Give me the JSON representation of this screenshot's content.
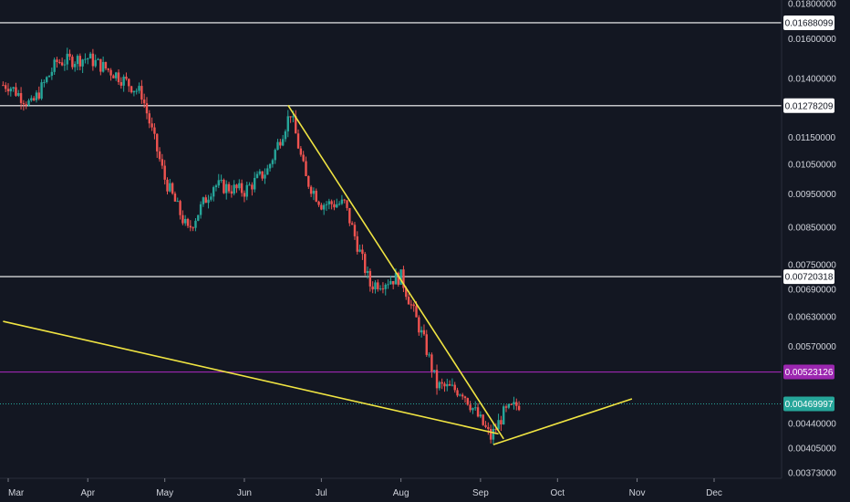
{
  "chart_data": {
    "type": "candlestick",
    "x_axis": {
      "tick_labels": [
        "Mar",
        "Apr",
        "May",
        "Jun",
        "Jul",
        "Aug",
        "Sep",
        "Oct",
        "Nov",
        "Dec"
      ],
      "tick_dates": [
        "2020-03-01",
        "2020-04-01",
        "2020-05-01",
        "2020-06-01",
        "2020-07-01",
        "2020-08-01",
        "2020-09-01",
        "2020-10-01",
        "2020-11-01",
        "2020-12-01"
      ],
      "range": [
        "2020-03-01",
        "2020-12-31"
      ]
    },
    "y_axis": {
      "scale": "log",
      "side": "right",
      "tick_labels": [
        "0.01800000",
        "0.01600000",
        "0.01400000",
        "0.01150000",
        "0.01050000",
        "0.00950000",
        "0.00850000",
        "0.00750000",
        "0.00690000",
        "0.00630000",
        "0.00570000",
        "0.00440000",
        "0.00405000",
        "0.00373000"
      ],
      "range": [
        0.00355,
        0.0181
      ]
    },
    "grid": false,
    "colors": {
      "background": "#131722",
      "up_candle": "#26a69a",
      "down_candle": "#ef5350",
      "horizontal_level": "#ffffff",
      "purple_level": "#9c27b0",
      "current_price": "#26a69a",
      "trendline": "#f0e442",
      "axis_text": "#d1d4dc"
    },
    "price_levels": [
      {
        "value": "0.01688099",
        "color": "#ffffff"
      },
      {
        "value": "0.01278209",
        "color": "#ffffff"
      },
      {
        "value": "0.00720318",
        "color": "#ffffff"
      },
      {
        "value": "0.00523126",
        "color": "#9c27b0"
      },
      {
        "value": "0.00469997",
        "color": "#26a69a",
        "style": "dotted",
        "current": true
      }
    ],
    "trendlines": [
      {
        "from": {
          "date": "2020-02-28",
          "price": 0.0062
        },
        "to": {
          "date": "2020-09-08",
          "price": 0.00425
        }
      },
      {
        "from": {
          "date": "2020-06-18",
          "price": 0.0128
        },
        "to": {
          "date": "2020-09-10",
          "price": 0.00418
        }
      },
      {
        "from": {
          "date": "2020-09-06",
          "price": 0.0041
        },
        "to": {
          "date": "2020-10-30",
          "price": 0.00478
        }
      }
    ],
    "series": [
      {
        "type": "ohlc",
        "key_points": [
          {
            "date": "2020-03-01",
            "close": 0.0137
          },
          {
            "date": "2020-03-10",
            "close": 0.0128
          },
          {
            "date": "2020-03-20",
            "close": 0.0148
          },
          {
            "date": "2020-04-01",
            "close": 0.015
          },
          {
            "date": "2020-04-12",
            "close": 0.0142
          },
          {
            "date": "2020-04-22",
            "close": 0.0133
          },
          {
            "date": "2020-05-01",
            "close": 0.01
          },
          {
            "date": "2020-05-10",
            "close": 0.0084
          },
          {
            "date": "2020-05-20",
            "close": 0.0098
          },
          {
            "date": "2020-06-01",
            "close": 0.0096
          },
          {
            "date": "2020-06-10",
            "close": 0.0103
          },
          {
            "date": "2020-06-19",
            "close": 0.0125
          },
          {
            "date": "2020-06-25",
            "close": 0.01
          },
          {
            "date": "2020-07-01",
            "close": 0.0092
          },
          {
            "date": "2020-07-10",
            "close": 0.0092
          },
          {
            "date": "2020-07-20",
            "close": 0.007
          },
          {
            "date": "2020-08-01",
            "close": 0.0072
          },
          {
            "date": "2020-08-10",
            "close": 0.0058
          },
          {
            "date": "2020-08-15",
            "close": 0.005
          },
          {
            "date": "2020-08-25",
            "close": 0.0049
          },
          {
            "date": "2020-09-05",
            "close": 0.0042
          },
          {
            "date": "2020-09-10",
            "close": 0.00455
          },
          {
            "date": "2020-09-16",
            "close": 0.0047
          }
        ]
      }
    ]
  }
}
